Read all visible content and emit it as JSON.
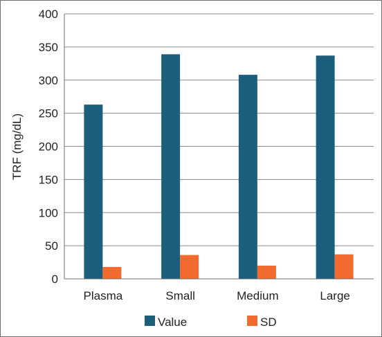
{
  "chart_data": {
    "type": "bar",
    "categories": [
      "Plasma",
      "Small",
      "Medium",
      "Large"
    ],
    "series": [
      {
        "name": "Value",
        "values": [
          263,
          339,
          308,
          337
        ],
        "color": "#1c5f7c"
      },
      {
        "name": "SD",
        "values": [
          18,
          36,
          20,
          37
        ],
        "color": "#f16a2e"
      }
    ],
    "title": "",
    "xlabel": "",
    "ylabel": "TRF (mg/dL)",
    "ylim": [
      0,
      400
    ],
    "yticks": [
      0,
      50,
      100,
      150,
      200,
      250,
      300,
      350,
      400
    ],
    "grid": "horizontal",
    "legend_position": "bottom"
  }
}
